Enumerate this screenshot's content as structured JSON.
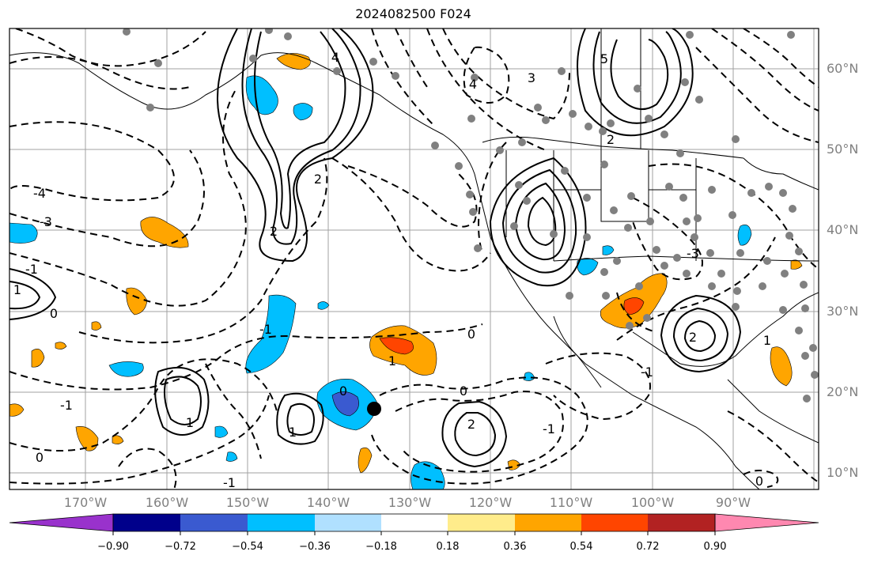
{
  "title": "2024082500 F024",
  "map": {
    "lat_labels": [
      "60°N",
      "50°N",
      "40°N",
      "30°N",
      "20°N",
      "10°N"
    ],
    "lon_labels": [
      "170°W",
      "160°W",
      "150°W",
      "140°W",
      "130°W",
      "120°W",
      "110°W",
      "100°W",
      "90°W"
    ],
    "contour_labels": [
      "4",
      "5",
      "4",
      "3",
      "2",
      "-4",
      "-3",
      "-1",
      "1",
      "-1",
      "0",
      "1",
      "-1",
      "0",
      "2",
      "0",
      "-1",
      "1",
      "0",
      "-1",
      "2",
      "1",
      "0",
      "-1",
      "-3",
      "2",
      "0",
      "1",
      "2"
    ],
    "storm_marker": "black-dot",
    "station_marker_color": "#808080",
    "coastline_color": "#000000",
    "grid_color": "#a0a0a0"
  },
  "colorbar": {
    "ticks": [
      "−0.90",
      "−0.72",
      "−0.54",
      "−0.36",
      "−0.18",
      "0.18",
      "0.36",
      "0.54",
      "0.72",
      "0.90"
    ],
    "colors": [
      "#9932cc",
      "#00008b",
      "#3a5ad0",
      "#00bfff",
      "#b0e0ff",
      "#ffffff",
      "#ffec8b",
      "#ffa500",
      "#ff4500",
      "#b22222",
      "#ff88b0"
    ]
  }
}
